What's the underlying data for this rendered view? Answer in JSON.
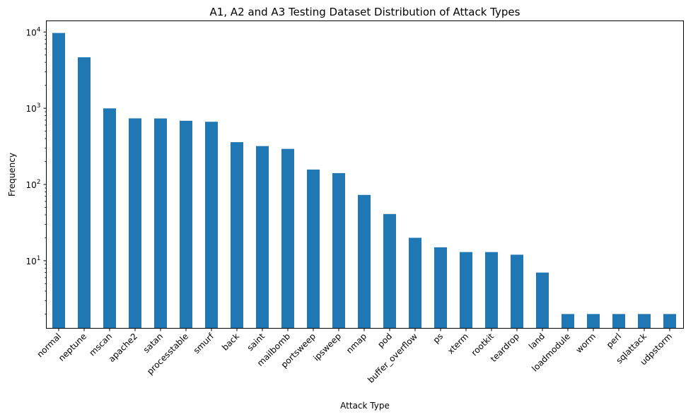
{
  "chart_data": {
    "type": "bar",
    "title": "A1, A2 and A3 Testing Dataset Distribution of Attack Types",
    "xlabel": "Attack Type",
    "ylabel": "Frequency",
    "yscale": "log",
    "ylim": [
      1.3,
      14000
    ],
    "grid": false,
    "color": "#1f77b4",
    "categories": [
      "normal",
      "neptune",
      "mscan",
      "apache2",
      "satan",
      "processtable",
      "smurf",
      "back",
      "saint",
      "mailbomb",
      "portsweep",
      "ipsweep",
      "nmap",
      "pod",
      "buffer_overflow",
      "ps",
      "xterm",
      "rootkit",
      "teardrop",
      "land",
      "loadmodule",
      "worm",
      "perl",
      "sqlattack",
      "udpstorm"
    ],
    "values": [
      9711,
      4657,
      996,
      737,
      735,
      685,
      665,
      359,
      319,
      293,
      157,
      141,
      73,
      41,
      20,
      15,
      13,
      13,
      12,
      7,
      2,
      2,
      2,
      2,
      2
    ],
    "y_ticks": [
      {
        "value": 10,
        "base": "10",
        "exp": "1"
      },
      {
        "value": 100,
        "base": "10",
        "exp": "2"
      },
      {
        "value": 1000,
        "base": "10",
        "exp": "3"
      },
      {
        "value": 10000,
        "base": "10",
        "exp": "4"
      }
    ]
  }
}
